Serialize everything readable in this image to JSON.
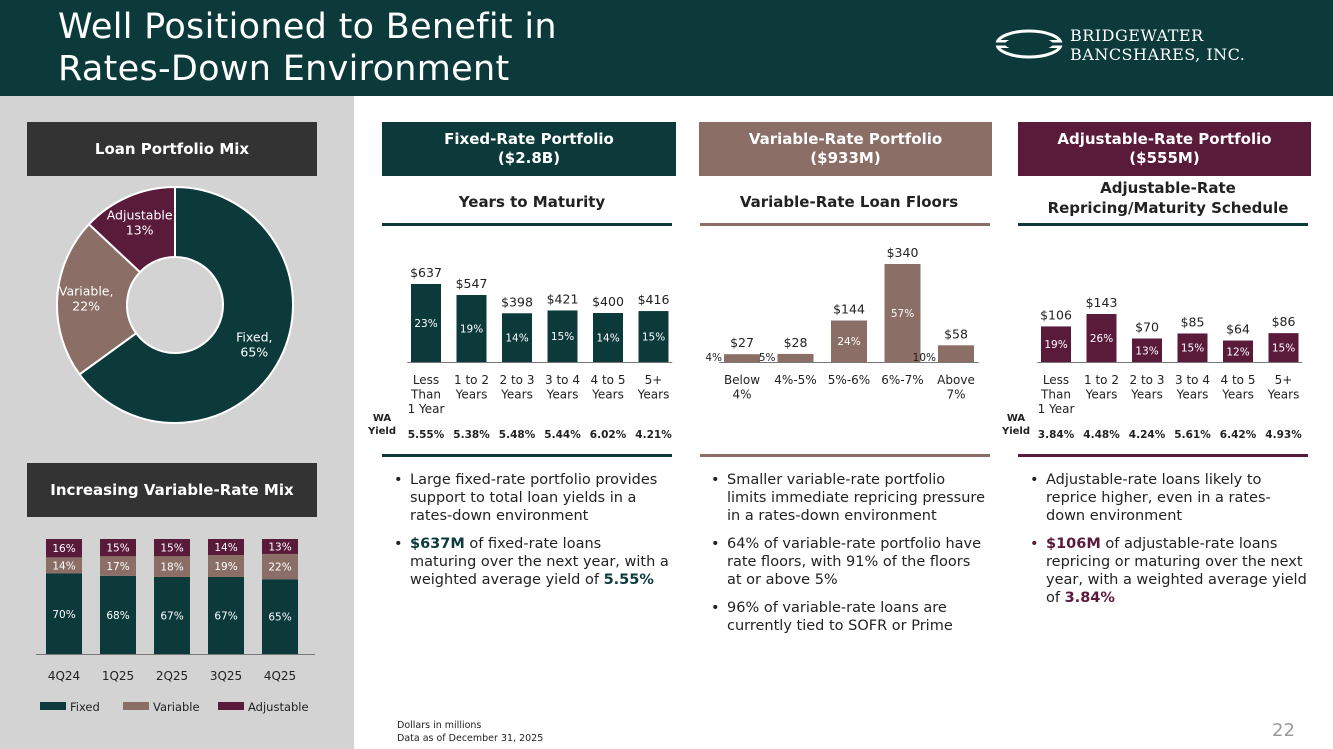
{
  "header": {
    "title": "Well Positioned to Benefit in\nRates-Down Environment",
    "logo_line1": "BRIDGEWATER",
    "logo_line2": "BANCSHARES, INC."
  },
  "colors": {
    "fixed": "#0c3a3b",
    "variable": "#8b6e66",
    "adjustable": "#5a1a3a",
    "dark_box": "#333333"
  },
  "left": {
    "mix_title": "Loan Portfolio Mix",
    "trend_title": "Increasing Variable-Rate Mix"
  },
  "columns": {
    "fixed": {
      "title": "Fixed-Rate Portfolio",
      "amount": "($2.8B)",
      "subtitle": "Years to Maturity"
    },
    "variable": {
      "title": "Variable-Rate Portfolio",
      "amount": "($933M)",
      "subtitle": "Variable-Rate Loan Floors"
    },
    "adjustable": {
      "title": "Adjustable-Rate Portfolio",
      "amount": "($555M)",
      "subtitle": "Adjustable-Rate\nRepricing/Maturity Schedule"
    }
  },
  "bullets": {
    "fixed": [
      {
        "text": "Large fixed-rate portfolio provides support to total loan yields in a rates-down environment"
      },
      {
        "bold": "$637M",
        "text": " of fixed-rate loans maturing over the next year, with a weighted average yield of ",
        "bold2": "5.55%"
      }
    ],
    "variable": [
      {
        "text": "Smaller variable-rate portfolio limits immediate repricing pressure in a rates-down environment"
      },
      {
        "text": "64% of variable-rate portfolio have rate floors, with 91% of the floors at or above 5%"
      },
      {
        "text": "96% of variable-rate loans are currently tied to SOFR or Prime"
      }
    ],
    "adjustable": [
      {
        "text": "Adjustable-rate loans likely to reprice higher, even in a rates-down environment"
      },
      {
        "bold": "$106M",
        "text": " of adjustable-rate loans repricing or maturing over the next year, with a weighted average yield of ",
        "bold2": "3.84%"
      }
    ]
  },
  "footnote": {
    "line1": "Dollars in millions",
    "line2": "Data as of December 31, 2025"
  },
  "page_number": "22",
  "chart_data": [
    {
      "type": "pie",
      "title": "Loan Portfolio Mix",
      "donut": true,
      "slices": [
        {
          "name": "Fixed",
          "value": 65,
          "label": "Fixed,\n65%"
        },
        {
          "name": "Variable",
          "value": 22,
          "label": "Variable,\n22%"
        },
        {
          "name": "Adjustable",
          "value": 13,
          "label": "Adjustable\n13%"
        }
      ]
    },
    {
      "type": "bar",
      "title": "Increasing Variable-Rate Mix",
      "stacked": true,
      "categories": [
        "4Q24",
        "1Q25",
        "2Q25",
        "3Q25",
        "4Q25"
      ],
      "series": [
        {
          "name": "Fixed",
          "values": [
            70,
            68,
            67,
            67,
            65
          ]
        },
        {
          "name": "Variable",
          "values": [
            14,
            17,
            18,
            19,
            22
          ]
        },
        {
          "name": "Adjustable",
          "values": [
            16,
            15,
            15,
            14,
            13
          ]
        }
      ],
      "legend": "bottom"
    },
    {
      "type": "bar",
      "title": "Years to Maturity",
      "categories": [
        "Less\nThan\n1 Year",
        "1 to 2\nYears",
        "2 to 3\nYears",
        "3 to 4\nYears",
        "4 to 5\nYears",
        "5+\nYears"
      ],
      "values": [
        637,
        547,
        398,
        421,
        400,
        416
      ],
      "value_labels": [
        "$637",
        "$547",
        "$398",
        "$421",
        "$400",
        "$416"
      ],
      "pct_labels": [
        "23%",
        "19%",
        "14%",
        "15%",
        "14%",
        "15%"
      ],
      "yield_label": "WA\nYield",
      "yields": [
        "5.55%",
        "5.38%",
        "5.48%",
        "5.44%",
        "6.02%",
        "4.21%"
      ],
      "ylim": [
        0,
        700
      ]
    },
    {
      "type": "bar",
      "title": "Variable-Rate Loan Floors",
      "categories": [
        "Below\n4%",
        "4%-5%",
        "5%-6%",
        "6%-7%",
        "Above\n7%"
      ],
      "values": [
        27,
        28,
        144,
        340,
        58
      ],
      "value_labels": [
        "$27",
        "$28",
        "$144",
        "$340",
        "$58"
      ],
      "pct_labels": [
        "4%",
        "5%",
        "24%",
        "57%",
        "10%"
      ],
      "ylim": [
        0,
        360
      ]
    },
    {
      "type": "bar",
      "title": "Adjustable-Rate Repricing/Maturity Schedule",
      "categories": [
        "Less\nThan\n1 Year",
        "1 to 2\nYears",
        "2 to 3\nYears",
        "3 to 4\nYears",
        "4 to 5\nYears",
        "5+\nYears"
      ],
      "values": [
        106,
        143,
        70,
        85,
        64,
        86
      ],
      "value_labels": [
        "$106",
        "$143",
        "$70",
        "$85",
        "$64",
        "$86"
      ],
      "pct_labels": [
        "19%",
        "26%",
        "13%",
        "15%",
        "12%",
        "15%"
      ],
      "yield_label": "WA\nYield",
      "yields": [
        "3.84%",
        "4.48%",
        "4.24%",
        "5.61%",
        "6.42%",
        "4.93%"
      ],
      "ylim": [
        0,
        160
      ]
    }
  ]
}
